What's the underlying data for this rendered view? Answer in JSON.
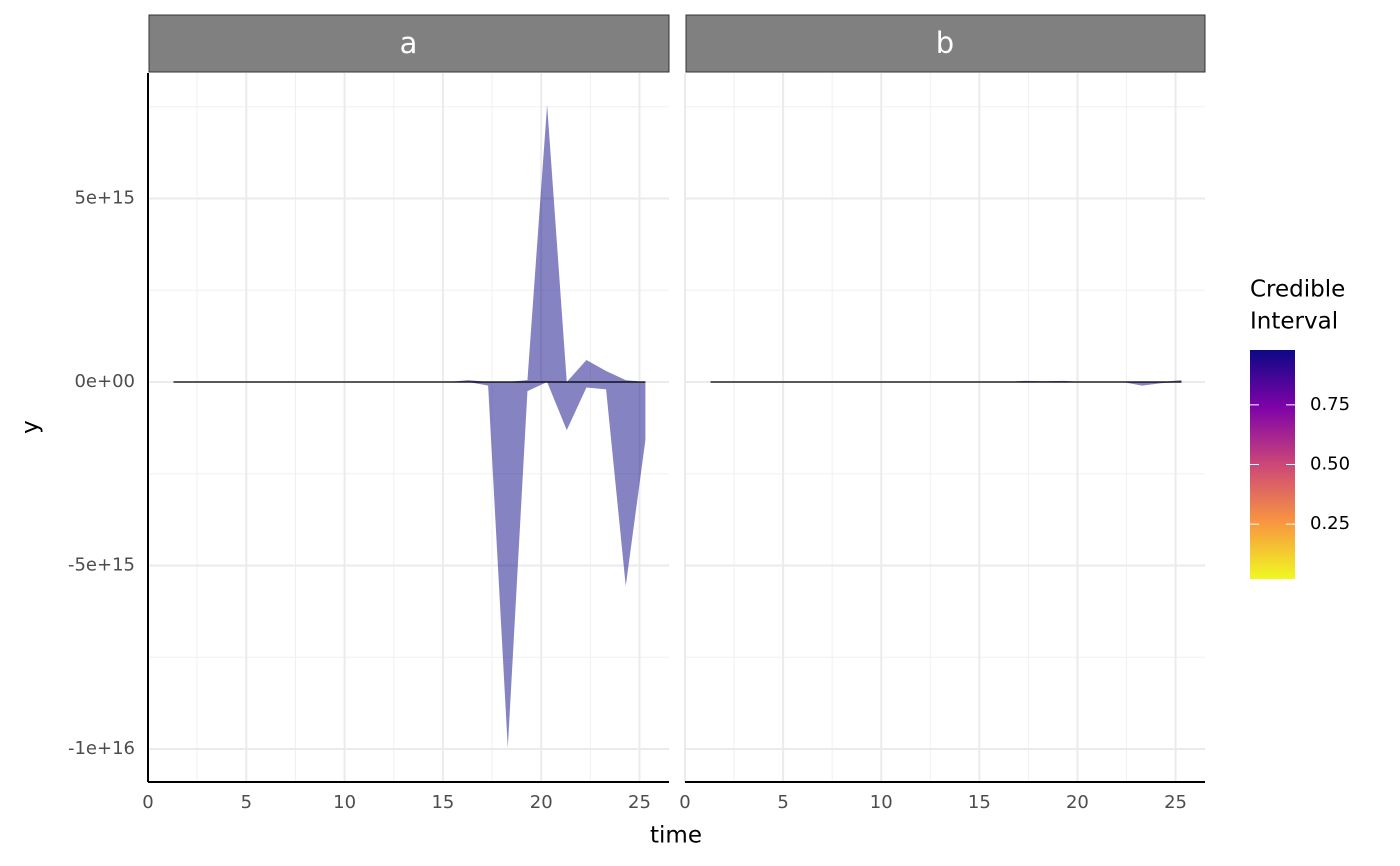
{
  "chart_data": [
    {
      "type": "area",
      "title": "a",
      "x": [
        1.3,
        2.3,
        3.3,
        4.3,
        5.3,
        6.3,
        7.3,
        8.3,
        9.3,
        10.3,
        11.3,
        12.3,
        13.3,
        14.3,
        15.3,
        16.3,
        17.3,
        18.3,
        19.3,
        20.3,
        21.3,
        22.3,
        23.3,
        24.3,
        25.3
      ],
      "upper": [
        0,
        0,
        0,
        0,
        0,
        0,
        0,
        0,
        0,
        0,
        0,
        0,
        0,
        0,
        0,
        50000000000000,
        0,
        0,
        50000000000000,
        7550000000000000,
        0,
        600000000000000,
        300000000000000,
        50000000000000,
        0
      ],
      "lower": [
        0,
        0,
        0,
        0,
        0,
        0,
        0,
        0,
        0,
        0,
        0,
        0,
        0,
        0,
        0,
        0,
        -100000000000000,
        -9970000000000000,
        -250000000000000,
        0,
        -1310000000000000,
        -150000000000000,
        -200000000000000,
        -5560000000000000,
        -1580000000000000
      ],
      "median": [
        0,
        0,
        0,
        0,
        0,
        0,
        0,
        0,
        0,
        0,
        0,
        0,
        0,
        0,
        0,
        0,
        0,
        0,
        0,
        0,
        0,
        0,
        0,
        0,
        0
      ],
      "color": "#0d0887",
      "opacity": 0.5,
      "line_color": "#000000",
      "xlim": [
        0,
        26.5
      ],
      "xticks": [
        0,
        5,
        10,
        15,
        20,
        25
      ],
      "xminorticks": [
        2.5,
        7.5,
        12.5,
        17.5,
        22.5
      ],
      "ylim": [
        -10900000000000000,
        8420000000000000
      ],
      "yticks": [
        {
          "value": -10000000000000000,
          "label": "-1e+16"
        },
        {
          "value": -5000000000000000,
          "label": "-5e+15"
        },
        {
          "value": 0,
          "label": "0e+00"
        },
        {
          "value": 5000000000000000,
          "label": "5e+15"
        }
      ],
      "yminorticks": [
        -7500000000000000,
        -2500000000000000,
        2500000000000000,
        7500000000000000
      ],
      "grid": true
    },
    {
      "type": "area",
      "title": "b",
      "x": [
        1.3,
        2.3,
        3.3,
        4.3,
        5.3,
        6.3,
        7.3,
        8.3,
        9.3,
        10.3,
        11.3,
        12.3,
        13.3,
        14.3,
        15.3,
        16.3,
        17.3,
        18.3,
        19.3,
        20.3,
        21.3,
        22.3,
        23.3,
        24.3,
        25.3
      ],
      "upper": [
        0,
        0,
        0,
        0,
        0,
        0,
        0,
        0,
        0,
        0,
        0,
        0,
        0,
        0,
        0,
        0,
        30000000000000,
        20000000000000,
        30000000000000,
        0,
        0,
        0,
        0,
        0,
        50000000000000
      ],
      "lower": [
        0,
        0,
        0,
        0,
        0,
        0,
        0,
        0,
        0,
        0,
        0,
        0,
        0,
        0,
        0,
        0,
        0,
        0,
        0,
        0,
        0,
        0,
        -100000000000000,
        -30000000000000,
        0
      ],
      "median": [
        0,
        0,
        0,
        0,
        0,
        0,
        0,
        0,
        0,
        0,
        0,
        0,
        0,
        0,
        0,
        0,
        0,
        0,
        0,
        0,
        0,
        0,
        0,
        0,
        0
      ],
      "color": "#0d0887",
      "opacity": 0.5,
      "line_color": "#000000",
      "xlim": [
        0,
        26.5
      ],
      "xticks": [
        0,
        5,
        10,
        15,
        20,
        25
      ],
      "xminorticks": [
        2.5,
        7.5,
        12.5,
        17.5,
        22.5
      ],
      "ylim": [
        -10900000000000000,
        8420000000000000
      ],
      "yticks": [
        {
          "value": -10000000000000000,
          "label": "-1e+16"
        },
        {
          "value": -5000000000000000,
          "label": "-5e+15"
        },
        {
          "value": 0,
          "label": "0e+00"
        },
        {
          "value": 5000000000000000,
          "label": "5e+15"
        }
      ],
      "yminorticks": [
        -7500000000000000,
        -2500000000000000,
        2500000000000000,
        7500000000000000
      ],
      "grid": true
    }
  ],
  "axes": {
    "xlabel": "time",
    "ylabel": "y"
  },
  "legend": {
    "title": [
      "Credible",
      "Interval"
    ],
    "lim": [
      0.02,
      0.98
    ],
    "ticks": [
      0.25,
      {
        "value": 0.5,
        "label": "0.50"
      },
      0.75
    ],
    "colormap": [
      "#f0f921",
      "#f89540",
      "#cc4778",
      "#7e03a8",
      "#0d0887"
    ]
  }
}
